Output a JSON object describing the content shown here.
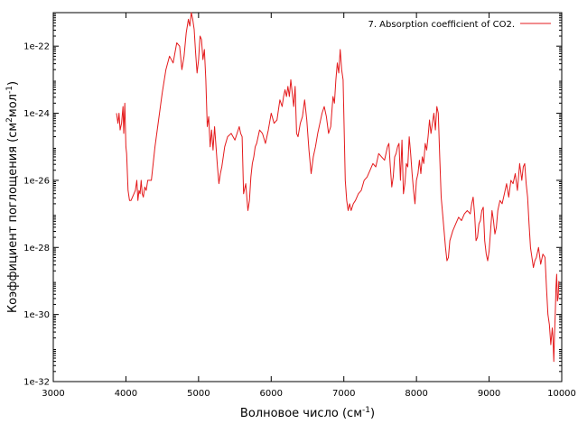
{
  "chart_data": {
    "type": "line",
    "xlabel": "Волновое число (см",
    "xlabel_sup": "-1",
    "xlabel_end": ")",
    "ylabel": "Коэффициент поглощения (см",
    "ylabel_sup1": "2",
    "ylabel_mid": "мол",
    "ylabel_sup2": "-1",
    "ylabel_end": ")",
    "xlim": [
      3000,
      10000
    ],
    "ylog_range": [
      -32,
      -21
    ],
    "y_scale": "log",
    "grid": false,
    "legend_position": "top-right",
    "x_ticks": [
      {
        "value": 3000,
        "label": "3000"
      },
      {
        "value": 4000,
        "label": "4000"
      },
      {
        "value": 5000,
        "label": "5000"
      },
      {
        "value": 6000,
        "label": "6000"
      },
      {
        "value": 7000,
        "label": "7000"
      },
      {
        "value": 8000,
        "label": "8000"
      },
      {
        "value": 9000,
        "label": "9000"
      },
      {
        "value": 10000,
        "label": "10000"
      }
    ],
    "y_ticks": [
      {
        "value": 1e-22,
        "label": "1e-22"
      },
      {
        "value": 1e-24,
        "label": "1e-24"
      },
      {
        "value": 1e-26,
        "label": "1e-26"
      },
      {
        "value": 1e-28,
        "label": "1e-28"
      },
      {
        "value": 1e-30,
        "label": "1e-30"
      },
      {
        "value": 1e-32,
        "label": "1e-32"
      }
    ],
    "series": [
      {
        "name": "7. Absorption coefficient of CO2.",
        "color": "#e41a1c",
        "x": [
          3870,
          3890,
          3905,
          3920,
          3940,
          3960,
          3970,
          3985,
          4000,
          4010,
          4030,
          4050,
          4070,
          4090,
          4110,
          4130,
          4150,
          4165,
          4180,
          4195,
          4210,
          4225,
          4240,
          4260,
          4280,
          4300,
          4320,
          4350,
          4400,
          4450,
          4500,
          4550,
          4600,
          4650,
          4700,
          4740,
          4770,
          4800,
          4830,
          4860,
          4880,
          4900,
          4920,
          4940,
          4960,
          4980,
          5000,
          5020,
          5040,
          5060,
          5080,
          5100,
          5120,
          5140,
          5160,
          5180,
          5200,
          5220,
          5240,
          5260,
          5280,
          5300,
          5320,
          5340,
          5360,
          5400,
          5450,
          5500,
          5530,
          5560,
          5580,
          5600,
          5620,
          5650,
          5680,
          5700,
          5720,
          5740,
          5760,
          5780,
          5800,
          5840,
          5880,
          5920,
          5960,
          6000,
          6040,
          6080,
          6120,
          6150,
          6170,
          6190,
          6210,
          6230,
          6250,
          6270,
          6290,
          6310,
          6330,
          6350,
          6370,
          6400,
          6430,
          6460,
          6490,
          6520,
          6550,
          6580,
          6610,
          6640,
          6670,
          6700,
          6730,
          6760,
          6790,
          6820,
          6850,
          6870,
          6890,
          6910,
          6930,
          6950,
          6970,
          6990,
          7000,
          7020,
          7040,
          7060,
          7080,
          7100,
          7130,
          7160,
          7200,
          7240,
          7280,
          7320,
          7360,
          7400,
          7440,
          7480,
          7520,
          7560,
          7600,
          7620,
          7640,
          7660,
          7680,
          7700,
          7720,
          7740,
          7760,
          7780,
          7800,
          7820,
          7840,
          7860,
          7880,
          7900,
          7920,
          7940,
          7960,
          7980,
          8000,
          8020,
          8040,
          8060,
          8080,
          8100,
          8120,
          8140,
          8160,
          8180,
          8200,
          8220,
          8240,
          8260,
          8280,
          8300,
          8320,
          8340,
          8360,
          8380,
          8400,
          8420,
          8440,
          8460,
          8500,
          8540,
          8580,
          8620,
          8660,
          8700,
          8740,
          8760,
          8780,
          8800,
          8820,
          8840,
          8860,
          8880,
          8900,
          8920,
          8940,
          8960,
          8980,
          9000,
          9020,
          9040,
          9060,
          9080,
          9100,
          9120,
          9150,
          9180,
          9210,
          9240,
          9270,
          9300,
          9330,
          9360,
          9390,
          9420,
          9450,
          9470,
          9490,
          9510,
          9530,
          9550,
          9570,
          9590,
          9610,
          9630,
          9650,
          9680,
          9710,
          9740,
          9770,
          9790,
          9810,
          9830,
          9850,
          9870,
          9880,
          9890,
          9900,
          9910,
          9920,
          9930,
          9940,
          9950,
          9960,
          9970,
          9980,
          9990,
          10000
        ],
        "log_y": [
          -24.0,
          -24.3,
          -24.0,
          -24.5,
          -24.3,
          -23.8,
          -24.6,
          -23.7,
          -25.0,
          -25.2,
          -26.3,
          -26.6,
          -26.6,
          -26.5,
          -26.4,
          -26.3,
          -26.0,
          -26.6,
          -26.3,
          -26.4,
          -26.0,
          -26.4,
          -26.5,
          -26.2,
          -26.3,
          -26.0,
          -26.0,
          -26.0,
          -25.0,
          -24.2,
          -23.4,
          -22.7,
          -22.3,
          -22.5,
          -21.9,
          -22.0,
          -22.7,
          -22.3,
          -21.6,
          -21.2,
          -21.4,
          -21.0,
          -21.2,
          -21.5,
          -22.2,
          -22.8,
          -22.4,
          -21.7,
          -21.8,
          -22.4,
          -22.1,
          -23.0,
          -24.4,
          -24.1,
          -25.0,
          -24.5,
          -25.1,
          -24.4,
          -25.0,
          -25.6,
          -26.1,
          -25.8,
          -25.6,
          -25.3,
          -25.0,
          -24.7,
          -24.6,
          -24.8,
          -24.6,
          -24.4,
          -24.6,
          -24.7,
          -26.4,
          -26.1,
          -26.9,
          -26.6,
          -25.9,
          -25.5,
          -25.3,
          -25.0,
          -24.9,
          -24.5,
          -24.6,
          -24.9,
          -24.5,
          -24.0,
          -24.3,
          -24.2,
          -23.6,
          -23.8,
          -23.5,
          -23.3,
          -23.5,
          -23.2,
          -23.5,
          -23.0,
          -23.4,
          -23.8,
          -23.2,
          -24.6,
          -24.7,
          -24.3,
          -24.1,
          -23.6,
          -24.2,
          -25.1,
          -25.8,
          -25.3,
          -25.0,
          -24.6,
          -24.3,
          -24.0,
          -23.8,
          -24.1,
          -24.6,
          -24.4,
          -23.5,
          -23.7,
          -23.0,
          -22.5,
          -22.8,
          -22.1,
          -22.7,
          -23.0,
          -24.0,
          -26.0,
          -26.6,
          -26.9,
          -26.7,
          -26.9,
          -26.7,
          -26.6,
          -26.4,
          -26.3,
          -26.0,
          -25.9,
          -25.7,
          -25.5,
          -25.6,
          -25.2,
          -25.3,
          -25.4,
          -25.0,
          -24.9,
          -25.6,
          -26.2,
          -25.9,
          -25.3,
          -25.2,
          -25.0,
          -24.9,
          -26.0,
          -24.8,
          -26.4,
          -26.1,
          -25.5,
          -25.6,
          -24.7,
          -25.2,
          -25.8,
          -26.3,
          -26.7,
          -26.0,
          -25.8,
          -25.4,
          -25.8,
          -25.3,
          -25.5,
          -24.9,
          -25.1,
          -24.7,
          -24.2,
          -24.6,
          -24.3,
          -24.0,
          -24.5,
          -23.8,
          -24.0,
          -25.3,
          -26.5,
          -27.0,
          -27.5,
          -28.0,
          -28.4,
          -28.3,
          -27.8,
          -27.5,
          -27.3,
          -27.1,
          -27.2,
          -27.0,
          -26.9,
          -27.0,
          -26.7,
          -26.5,
          -27.0,
          -27.8,
          -27.7,
          -27.3,
          -27.2,
          -26.9,
          -26.8,
          -27.8,
          -28.2,
          -28.4,
          -28.1,
          -27.5,
          -26.9,
          -27.2,
          -27.6,
          -27.4,
          -26.9,
          -26.6,
          -26.7,
          -26.4,
          -26.1,
          -26.5,
          -26.0,
          -26.1,
          -25.8,
          -26.3,
          -25.5,
          -26.0,
          -25.6,
          -25.5,
          -26.1,
          -26.5,
          -27.3,
          -28.0,
          -28.3,
          -28.6,
          -28.4,
          -28.3,
          -28.0,
          -28.5,
          -28.2,
          -28.3,
          -29.2,
          -30.0,
          -30.3,
          -30.9,
          -30.4,
          -30.7,
          -31.4,
          -30.6,
          -30.0,
          -29.2,
          -28.8,
          -29.6,
          -29.5,
          -29.0
        ]
      }
    ]
  }
}
